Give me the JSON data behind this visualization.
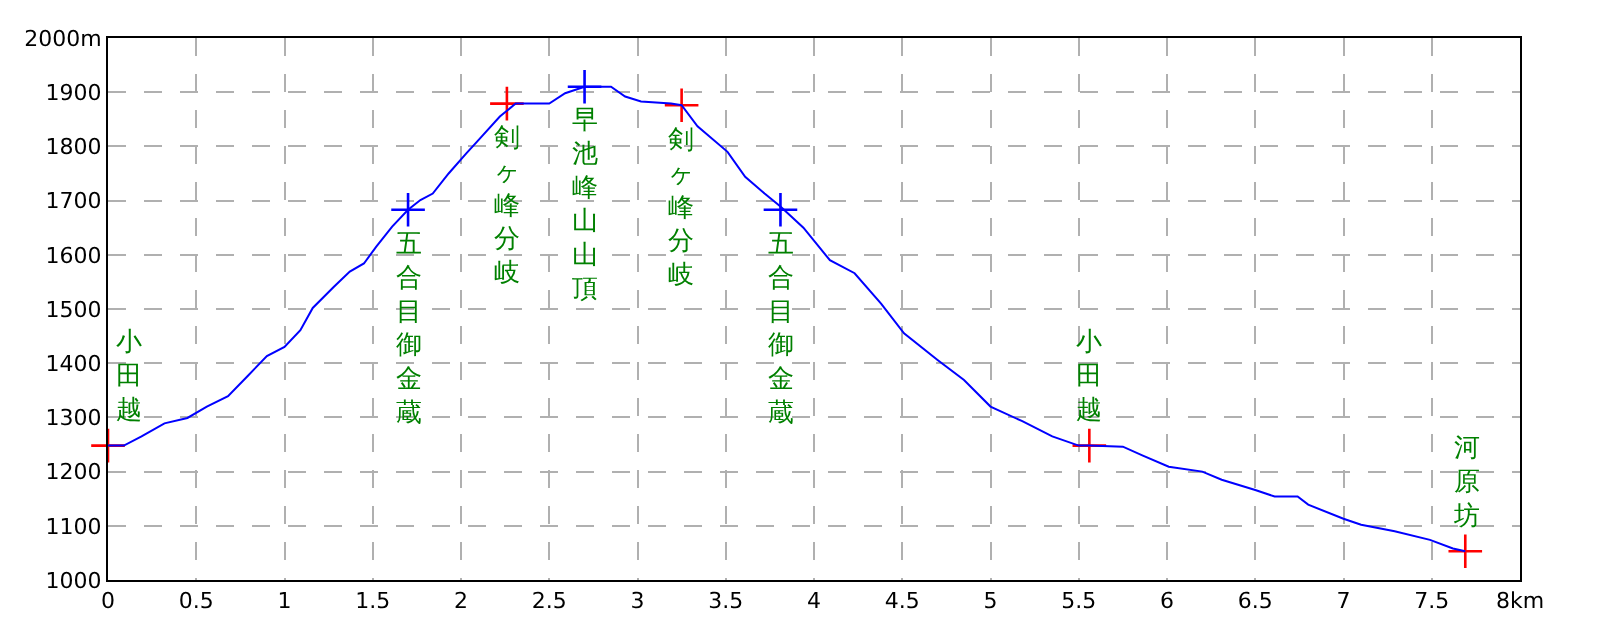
{
  "chart_data": {
    "type": "line",
    "xlim": [
      0,
      8
    ],
    "ylim": [
      1000,
      2000
    ],
    "xticks": [
      0,
      0.5,
      1,
      1.5,
      2,
      2.5,
      3,
      3.5,
      4,
      4.5,
      5,
      5.5,
      6,
      6.5,
      7,
      7.5,
      {
        "value": 8,
        "label": "8km"
      }
    ],
    "yticks": [
      1000,
      1100,
      1200,
      1300,
      1400,
      1500,
      1600,
      1700,
      1800,
      1900,
      {
        "value": 2000,
        "label": "2000m"
      }
    ],
    "grid": true,
    "series": [
      {
        "color": "#0000ff",
        "line_style": "solid",
        "marker": "none",
        "x": [
          0,
          0.09,
          0.19,
          0.32,
          0.45,
          0.56,
          0.68,
          0.79,
          0.9,
          1.0,
          1.09,
          1.16,
          1.28,
          1.37,
          1.45,
          1.52,
          1.61,
          1.7,
          1.77,
          1.84,
          1.93,
          2.03,
          2.1,
          2.22,
          2.31,
          2.5,
          2.59,
          2.7,
          2.85,
          2.93,
          3.02,
          3.19,
          3.25,
          3.34,
          3.51,
          3.61,
          3.72,
          3.81,
          3.94,
          4.09,
          4.23,
          4.38,
          4.51,
          4.7,
          4.85,
          5.0,
          5.18,
          5.35,
          5.5,
          5.56,
          5.75,
          5.86,
          6.01,
          6.2,
          6.31,
          6.5,
          6.61,
          6.74,
          6.8,
          7.0,
          7.1,
          7.29,
          7.49,
          7.62,
          7.69
        ],
        "values": [
          1248,
          1248,
          1265,
          1289,
          1299,
          1320,
          1339,
          1376,
          1413,
          1430,
          1461,
          1502,
          1541,
          1569,
          1584,
          1615,
          1652,
          1683,
          1701,
          1713,
          1750,
          1787,
          1812,
          1855,
          1879,
          1879,
          1898,
          1910,
          1910,
          1892,
          1883,
          1879,
          1876,
          1837,
          1790,
          1744,
          1713,
          1689,
          1650,
          1590,
          1566,
          1510,
          1455,
          1406,
          1369,
          1320,
          1293,
          1265,
          1248,
          1248,
          1246,
          1230,
          1209,
          1200,
          1185,
          1166,
          1154,
          1154,
          1139,
          1113,
          1102,
          1090,
          1074,
          1058,
          1053
        ]
      },
      {
        "type": "scatter",
        "marker": "cross",
        "x": [
          0,
          1.7,
          2.26,
          2.7,
          3.25,
          3.81,
          5.56,
          7.69
        ],
        "values": [
          1248,
          1683,
          1879,
          1910,
          1876,
          1683,
          1248,
          1053
        ],
        "colors": [
          "#ff0000",
          "#0000ff",
          "#ff0000",
          "#0000ff",
          "#ff0000",
          "#0000ff",
          "#ff0000",
          "#ff0000"
        ]
      }
    ],
    "annotations": [
      {
        "text": "小田越",
        "x": 0,
        "y": 1248
      },
      {
        "text": "五合目御金蔵",
        "x": 1.7,
        "y": 1683
      },
      {
        "text": "剣ヶ峰分岐",
        "x": 2.26,
        "y": 1879
      },
      {
        "text": "早池峰山山頂",
        "x": 2.7,
        "y": 1910
      },
      {
        "text": "剣ヶ峰分岐",
        "x": 3.25,
        "y": 1876
      },
      {
        "text": "五合目御金蔵",
        "x": 3.81,
        "y": 1683
      },
      {
        "text": "小田越",
        "x": 5.56,
        "y": 1248
      },
      {
        "text": "河原坊",
        "x": 7.69,
        "y": 1053
      }
    ]
  }
}
